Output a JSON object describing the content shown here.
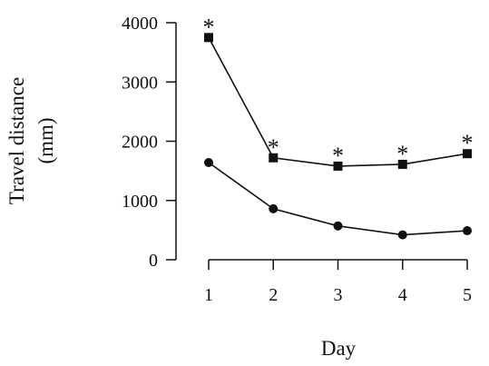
{
  "chart_data": {
    "type": "line",
    "x": [
      1,
      2,
      3,
      4,
      5
    ],
    "series": [
      {
        "marker": "square",
        "values": [
          3750,
          1720,
          1580,
          1610,
          1790
        ],
        "annotations": [
          "*",
          "*",
          "*",
          "*",
          "*"
        ]
      },
      {
        "marker": "circle",
        "values": [
          1640,
          860,
          570,
          420,
          490
        ]
      }
    ],
    "xlabel": "Day",
    "ylabel": [
      "Travel distance",
      "(mm)"
    ],
    "xticks": [
      "1",
      "2",
      "3",
      "4",
      "5"
    ],
    "yticks": [
      "0",
      "1000",
      "2000",
      "3000",
      "4000"
    ],
    "ylim": [
      0,
      4000
    ],
    "xlim": [
      1,
      5
    ],
    "grid": false,
    "colors": {
      "line": "#111111",
      "marker": "#111111"
    }
  }
}
